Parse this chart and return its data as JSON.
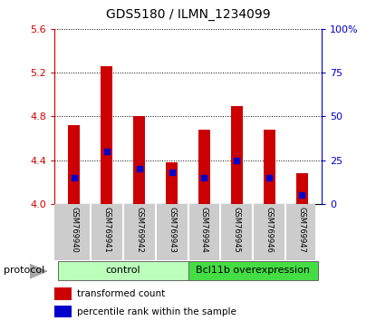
{
  "title": "GDS5180 / ILMN_1234099",
  "samples": [
    "GSM769940",
    "GSM769941",
    "GSM769942",
    "GSM769943",
    "GSM769944",
    "GSM769945",
    "GSM769946",
    "GSM769947"
  ],
  "transformed_counts": [
    4.72,
    5.26,
    4.8,
    4.38,
    4.68,
    4.89,
    4.68,
    4.28
  ],
  "percentile_ranks": [
    15,
    30,
    20,
    18,
    15,
    25,
    15,
    5
  ],
  "ymin": 4.0,
  "ymax": 5.6,
  "yticks": [
    4.0,
    4.4,
    4.8,
    5.2,
    5.6
  ],
  "right_yticks": [
    0,
    25,
    50,
    75,
    100
  ],
  "bar_color_red": "#cc0000",
  "bar_color_blue": "#0000cc",
  "bar_width": 0.35,
  "tick_label_color_left": "#cc0000",
  "tick_label_color_right": "#0000cc",
  "bg_color": "#ffffff",
  "group_light_color": "#bbffbb",
  "group_dark_color": "#44dd44",
  "gray_box_color": "#cccccc",
  "protocol_label": "protocol",
  "legend_red_label": "transformed count",
  "legend_blue_label": "percentile rank within the sample",
  "control_label": "control",
  "bcl_label": "Bcl11b overexpression"
}
